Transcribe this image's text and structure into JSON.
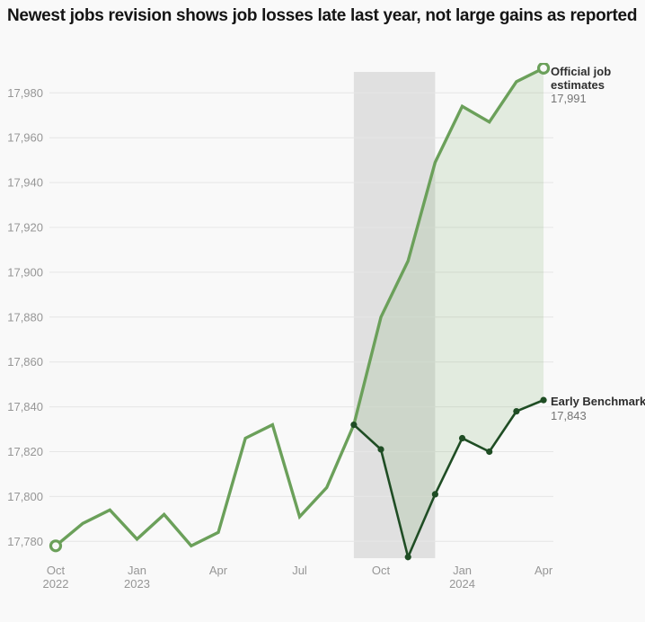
{
  "title": "Newest jobs revision shows job losses late last year, not large gains as reported",
  "colors": {
    "background": "#f9f9f9",
    "band": "#e0e0e0",
    "grid": "#e6e6e6",
    "area_fill": "rgba(107,160,90,0.16)",
    "official_line": "#6ba05a",
    "benchmark_line": "#1f4d24",
    "axis_text": "#969696",
    "annotation_name": "#2e2e2e",
    "annotation_value": "#757575"
  },
  "chart_data": {
    "type": "line",
    "title": "Newest jobs revision shows job losses late last year, not large gains as reported",
    "x": [
      "Oct 2022",
      "Nov 2022",
      "Dec 2022",
      "Jan 2023",
      "Feb 2023",
      "Mar 2023",
      "Apr 2023",
      "May 2023",
      "Jun 2023",
      "Jul 2023",
      "Aug 2023",
      "Sep 2023",
      "Oct 2023",
      "Nov 2023",
      "Dec 2023",
      "Jan 2024",
      "Feb 2024",
      "Mar 2024",
      "Apr 2024"
    ],
    "series": [
      {
        "name": "Official job estimates",
        "color": "#6ba05a",
        "start_index": 0,
        "values": [
          17778,
          17788,
          17794,
          17781,
          17792,
          17778,
          17784,
          17826,
          17832,
          17791,
          17804,
          17832,
          17880,
          17905,
          17949,
          17974,
          17967,
          17985,
          17991
        ],
        "end_label": "17,991",
        "marker": "open-circle-at-ends"
      },
      {
        "name": "Early Benchmark",
        "color": "#1f4d24",
        "start_index": 11,
        "values": [
          17832,
          17821,
          17773,
          17801,
          17826,
          17820,
          17838,
          17843
        ],
        "end_label": "17,843",
        "marker": "filled-dots"
      }
    ],
    "y_ticks": [
      {
        "v": 17780,
        "label": "17,780"
      },
      {
        "v": 17800,
        "label": "17,800"
      },
      {
        "v": 17820,
        "label": "17,820"
      },
      {
        "v": 17840,
        "label": "17,840"
      },
      {
        "v": 17860,
        "label": "17,860"
      },
      {
        "v": 17880,
        "label": "17,880"
      },
      {
        "v": 17900,
        "label": "17,900"
      },
      {
        "v": 17920,
        "label": "17,920"
      },
      {
        "v": 17940,
        "label": "17,940"
      },
      {
        "v": 17960,
        "label": "17,960"
      },
      {
        "v": 17980,
        "label": "17,980"
      }
    ],
    "x_ticks": [
      {
        "index": 0,
        "line1": "Oct",
        "line2": "2022"
      },
      {
        "index": 3,
        "line1": "Jan",
        "line2": "2023"
      },
      {
        "index": 6,
        "line1": "Apr",
        "line2": ""
      },
      {
        "index": 9,
        "line1": "Jul",
        "line2": ""
      },
      {
        "index": 12,
        "line1": "Oct",
        "line2": ""
      },
      {
        "index": 15,
        "line1": "Jan",
        "line2": "2024"
      },
      {
        "index": 18,
        "line1": "Apr",
        "line2": ""
      }
    ],
    "band": {
      "from_index": 11,
      "to_index": 14
    },
    "area_between": {
      "from_index": 11,
      "to_index": 18
    },
    "ylim": [
      17770,
      17995
    ],
    "grid": "horizontal",
    "legend_position": "end-of-line-annotations"
  }
}
